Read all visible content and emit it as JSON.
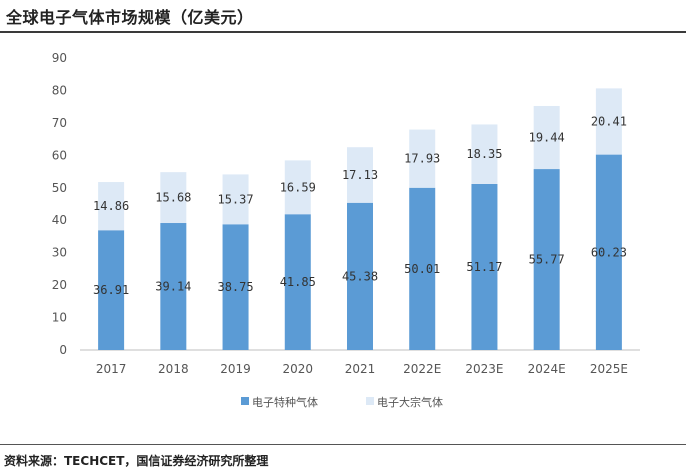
{
  "title": "全球电子气体市场规模（亿美元）",
  "source": "资料来源：TECHCET，国信证券经济研究所整理",
  "chart_data": {
    "type": "bar",
    "stacked": true,
    "categories": [
      "2017",
      "2018",
      "2019",
      "2020",
      "2021",
      "2022E",
      "2023E",
      "2024E",
      "2025E"
    ],
    "series": [
      {
        "name": "电子特种气体",
        "values": [
          36.91,
          39.14,
          38.75,
          41.85,
          45.38,
          50.01,
          51.17,
          55.77,
          60.23
        ],
        "labels": [
          "36.91",
          "39.14",
          "38.75",
          "41.85",
          "45.38",
          "50.01",
          "51.17",
          "55.77",
          "60.23"
        ],
        "color": "#5b9bd5"
      },
      {
        "name": "电子大宗气体",
        "values": [
          14.86,
          15.68,
          15.37,
          16.59,
          17.13,
          17.93,
          18.35,
          19.44,
          20.41
        ],
        "labels": [
          "14.86",
          "15.68",
          "15.37",
          "16.59",
          "17.13",
          "17.93",
          "18.35",
          "19.44",
          "20.41"
        ],
        "color": "#dde9f6"
      }
    ],
    "yticks": [
      "0",
      "10",
      "20",
      "30",
      "40",
      "50",
      "60",
      "70",
      "80",
      "90"
    ],
    "ylim": [
      0,
      90
    ],
    "grid": false,
    "legend_position": "bottom"
  }
}
